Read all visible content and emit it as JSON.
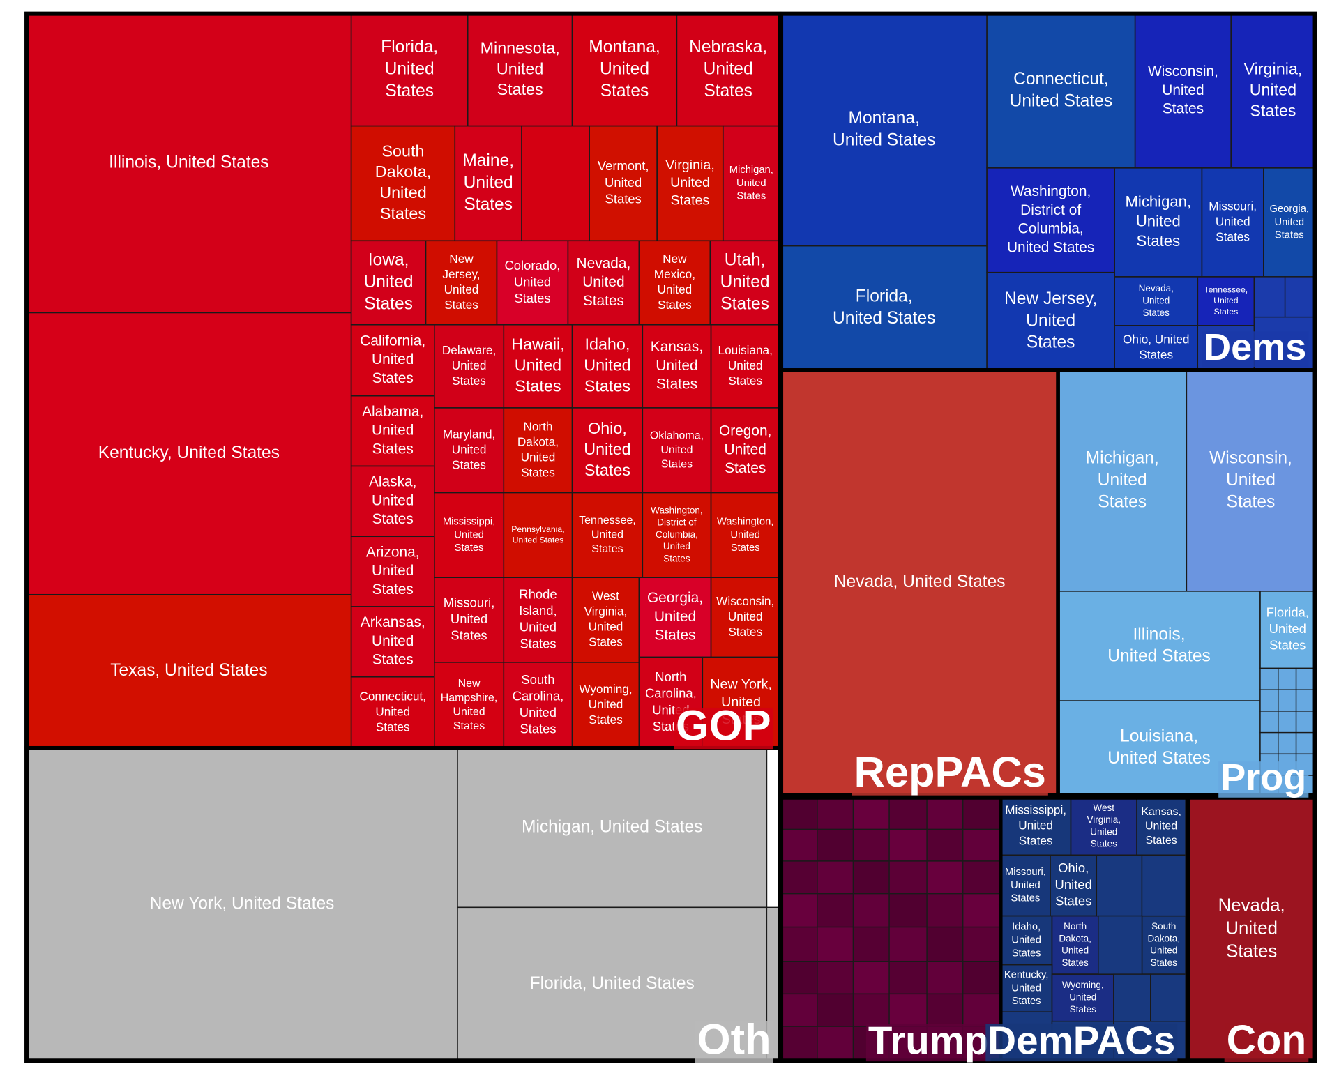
{
  "chart_data": {
    "type": "treemap",
    "title": "",
    "groups": [
      {
        "name": "GOP",
        "label": "GOP",
        "color": "#d40012",
        "leaves": [
          {
            "label": "Illinois, United States",
            "color": "#d30018"
          },
          {
            "label": "Kentucky, United States",
            "color": "#d60018"
          },
          {
            "label": "Texas, United States",
            "color": "#d20f00"
          },
          {
            "label": "Florida, United States",
            "color": "#d1001a"
          },
          {
            "label": "Minnesota, United States",
            "color": "#d1001a"
          },
          {
            "label": "Montana, United States",
            "color": "#d40012"
          },
          {
            "label": "Nebraska, United States",
            "color": "#d20017"
          },
          {
            "label": "South Dakota, United States",
            "color": "#d00d00"
          },
          {
            "label": "Maine, United States",
            "color": "#d30018"
          },
          {
            "label": "",
            "color": "#d40012"
          },
          {
            "label": "Vermont, United States",
            "color": "#d01000"
          },
          {
            "label": "Virginia, United States",
            "color": "#d01000"
          },
          {
            "label": "Michigan, United States",
            "color": "#d2001a"
          },
          {
            "label": "Iowa, United States",
            "color": "#d2001a"
          },
          {
            "label": "New Jersey, United States",
            "color": "#d00d00"
          },
          {
            "label": "Colorado, United States",
            "color": "#d80028"
          },
          {
            "label": "Nevada, United States",
            "color": "#d10018"
          },
          {
            "label": "New Mexico, United States",
            "color": "#d00d00"
          },
          {
            "label": "Utah, United States",
            "color": "#d2001a"
          },
          {
            "label": "California, United States",
            "color": "#d40014"
          },
          {
            "label": "Delaware, United States",
            "color": "#d10018"
          },
          {
            "label": "Hawaii, United States",
            "color": "#d40014"
          },
          {
            "label": "Idaho, United States",
            "color": "#d40014"
          },
          {
            "label": "Kansas, United States",
            "color": "#d40014"
          },
          {
            "label": "Louisiana, United States",
            "color": "#d40014"
          },
          {
            "label": "Alabama, United States",
            "color": "#d40014"
          },
          {
            "label": "Maryland, United States",
            "color": "#d10018"
          },
          {
            "label": "North Dakota, United States",
            "color": "#d00d00"
          },
          {
            "label": "Ohio, United States",
            "color": "#d40014"
          },
          {
            "label": "Oklahoma, United States",
            "color": "#d30018"
          },
          {
            "label": "Oregon, United States",
            "color": "#d10014"
          },
          {
            "label": "Alaska, United States",
            "color": "#d30018"
          },
          {
            "label": "Mississippi, United States",
            "color": "#d40012"
          },
          {
            "label": "Pennsylvania, United States",
            "color": "#d00d00"
          },
          {
            "label": "Tennessee, United States",
            "color": "#d00d00"
          },
          {
            "label": "Washington, District of Columbia, United States",
            "color": "#d00d00"
          },
          {
            "label": "Washington, United States",
            "color": "#d00d00"
          },
          {
            "label": "Arizona, United States",
            "color": "#d10018"
          },
          {
            "label": "Missouri, United States",
            "color": "#d20017"
          },
          {
            "label": "Rhode Island, United States",
            "color": "#d20017"
          },
          {
            "label": "West Virginia, United States",
            "color": "#d00d00"
          },
          {
            "label": "Georgia, United States",
            "color": "#d80028"
          },
          {
            "label": "Wisconsin, United States",
            "color": "#d00d00"
          },
          {
            "label": "Arkansas, United States",
            "color": "#d30018"
          },
          {
            "label": "Connecticut, United States",
            "color": "#d40012"
          },
          {
            "label": "New Hampshire, United States",
            "color": "#d40012"
          },
          {
            "label": "South Carolina, United States",
            "color": "#d30018"
          },
          {
            "label": "Wyoming, United States",
            "color": "#d00d00"
          },
          {
            "label": "North Carolina, United States",
            "color": "#d20017"
          },
          {
            "label": "New York, United States",
            "color": "#d00d00"
          }
        ]
      },
      {
        "name": "Dems",
        "label": "Dems",
        "color": "#1a3aa8",
        "leaves": [
          {
            "label": "Montana, United States",
            "color": "#1238b0"
          },
          {
            "label": "Connecticut, United States",
            "color": "#1249a8"
          },
          {
            "label": "Wisconsin, United States",
            "color": "#1624b8"
          },
          {
            "label": "Virginia, United States",
            "color": "#1624b8"
          },
          {
            "label": "Florida, United States",
            "color": "#1249a8"
          },
          {
            "label": "Washington, District of Columbia, United States",
            "color": "#1624b8"
          },
          {
            "label": "Michigan, United States",
            "color": "#1238b0"
          },
          {
            "label": "Missouri, United States",
            "color": "#1238b0"
          },
          {
            "label": "Georgia, United States",
            "color": "#1249a8"
          },
          {
            "label": "New Jersey, United States",
            "color": "#1238b0"
          },
          {
            "label": "Nevada, United States",
            "color": "#1238b0"
          },
          {
            "label": "Tennessee, United States",
            "color": "#1624b8"
          },
          {
            "label": "Ohio, United States",
            "color": "#1238b0"
          }
        ]
      },
      {
        "name": "RepPACs",
        "label": "RepPACs",
        "color": "#c1362e",
        "leaves": [
          {
            "label": "Nevada, United States",
            "color": "#c1362e"
          }
        ]
      },
      {
        "name": "Prog",
        "label": "Prog",
        "color": "#67a9e1",
        "leaves": [
          {
            "label": "Michigan, United States",
            "color": "#67a9e1"
          },
          {
            "label": "Wisconsin, United States",
            "color": "#6b95e0"
          },
          {
            "label": "Illinois, United States",
            "color": "#6ab0e4"
          },
          {
            "label": "Florida, United States",
            "color": "#6ab0e4"
          },
          {
            "label": "Louisiana, United States",
            "color": "#6ab0e4"
          }
        ]
      },
      {
        "name": "Oth",
        "label": "Oth",
        "color": "#b8b8b8",
        "leaves": [
          {
            "label": "New York, United States",
            "color": "#b8b8b8"
          },
          {
            "label": "Michigan, United States",
            "color": "#b8b8b8"
          },
          {
            "label": "Florida, United States",
            "color": "#b8b8b8"
          }
        ]
      },
      {
        "name": "Trump",
        "label": "Trump",
        "color": "#5f0038",
        "leaves": []
      },
      {
        "name": "DemPACs",
        "label": "DemPACs",
        "color": "#17377a",
        "leaves": [
          {
            "label": "Mississippi, United States",
            "color": "#17377a"
          },
          {
            "label": "West Virginia, United States",
            "color": "#1b2d85"
          },
          {
            "label": "Kansas, United States",
            "color": "#17377a"
          },
          {
            "label": "Missouri, United States",
            "color": "#17377a"
          },
          {
            "label": "Ohio, United States",
            "color": "#17377a"
          },
          {
            "label": "Idaho, United States",
            "color": "#17377a"
          },
          {
            "label": "North Dakota, United States",
            "color": "#1b2d85"
          },
          {
            "label": "South Dakota, United States",
            "color": "#17377a"
          },
          {
            "label": "Kentucky, United States",
            "color": "#17377a"
          },
          {
            "label": "Wyoming, United States",
            "color": "#1b2d85"
          }
        ]
      },
      {
        "name": "Con",
        "label": "Con",
        "color": "#9c1420",
        "leaves": [
          {
            "label": "Nevada, United States",
            "color": "#9c1420"
          }
        ]
      }
    ]
  }
}
